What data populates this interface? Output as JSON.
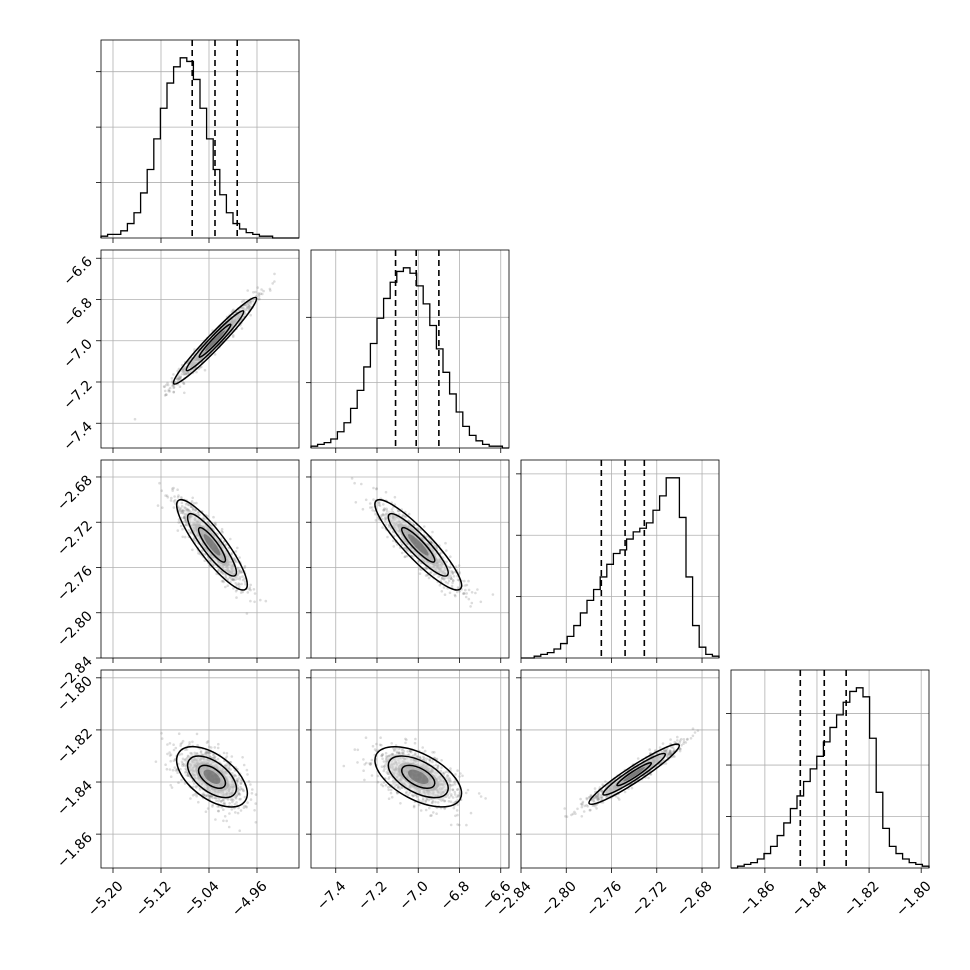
{
  "chart_data": {
    "type": "corner",
    "grid": true,
    "parameters": [
      {
        "range": [
          -5.22,
          -4.89
        ],
        "ticks": [
          -5.2,
          -5.12,
          -5.04,
          -4.96
        ],
        "tick_labels": [
          "−5.20",
          "−5.12",
          "−5.04",
          "−4.96"
        ],
        "quantiles": [
          -5.068,
          -5.03,
          -4.993
        ],
        "hist_ticks": [
          0.28,
          0.56,
          0.84
        ]
      },
      {
        "range": [
          -7.52,
          -6.56
        ],
        "ticks": [
          -7.4,
          -7.2,
          -7.0,
          -6.8,
          -6.6
        ],
        "tick_labels": [
          "−7.4",
          "−7.2",
          "−7.0",
          "−6.8",
          "−6.6"
        ],
        "quantiles": [
          -7.11,
          -7.01,
          -6.9
        ],
        "hist_ticks": [
          0.33,
          0.66
        ]
      },
      {
        "range": [
          -2.84,
          -2.665
        ],
        "ticks": [
          -2.84,
          -2.8,
          -2.76,
          -2.72,
          -2.68
        ],
        "tick_labels": [
          "−2.84",
          "−2.80",
          "−2.76",
          "−2.72",
          "−2.68"
        ],
        "quantiles": [
          -2.769,
          -2.748,
          -2.731
        ],
        "hist_ticks": [
          0.31,
          0.62,
          0.93
        ]
      },
      {
        "range": [
          -1.873,
          -1.797
        ],
        "ticks": [
          -1.86,
          -1.84,
          -1.82,
          -1.8
        ],
        "tick_labels": [
          "−1.86",
          "−1.84",
          "−1.82",
          "−1.80"
        ],
        "quantiles": [
          -1.8464,
          -1.8372,
          -1.8288
        ],
        "hist_ticks": [
          0.26,
          0.52,
          0.78
        ]
      }
    ],
    "histograms": [
      {
        "bins": 30,
        "counts": [
          0.01,
          0.02,
          0.02,
          0.04,
          0.08,
          0.14,
          0.25,
          0.38,
          0.55,
          0.72,
          0.86,
          0.95,
          1.0,
          0.98,
          0.88,
          0.72,
          0.55,
          0.38,
          0.24,
          0.14,
          0.08,
          0.05,
          0.03,
          0.02,
          0.01,
          0.01,
          0,
          0,
          0,
          0
        ]
      },
      {
        "bins": 30,
        "counts": [
          0.01,
          0.02,
          0.03,
          0.05,
          0.09,
          0.14,
          0.22,
          0.32,
          0.45,
          0.58,
          0.72,
          0.83,
          0.92,
          0.98,
          1.0,
          0.97,
          0.9,
          0.8,
          0.68,
          0.55,
          0.42,
          0.3,
          0.2,
          0.12,
          0.07,
          0.04,
          0.02,
          0.01,
          0.01,
          0
        ]
      },
      {
        "bins": 30,
        "counts": [
          0,
          0,
          0.01,
          0.02,
          0.03,
          0.05,
          0.08,
          0.12,
          0.18,
          0.25,
          0.32,
          0.38,
          0.45,
          0.52,
          0.58,
          0.6,
          0.66,
          0.7,
          0.72,
          0.75,
          0.82,
          0.9,
          1.0,
          1.0,
          0.78,
          0.45,
          0.18,
          0.06,
          0.02,
          0.01
        ]
      },
      {
        "bins": 30,
        "counts": [
          0,
          0.01,
          0.02,
          0.03,
          0.05,
          0.08,
          0.12,
          0.18,
          0.25,
          0.33,
          0.4,
          0.48,
          0.55,
          0.62,
          0.7,
          0.78,
          0.85,
          0.92,
          0.98,
          1.0,
          0.95,
          0.72,
          0.42,
          0.22,
          0.12,
          0.08,
          0.05,
          0.03,
          0.02,
          0.01
        ]
      }
    ],
    "pairs": [
      {
        "x": 0,
        "y": 1,
        "mean": [
          -5.03,
          -7.0
        ],
        "sd": [
          0.033,
          0.1
        ],
        "rho": 0.97
      },
      {
        "x": 0,
        "y": 2,
        "mean": [
          -5.035,
          -2.74
        ],
        "sd": [
          0.028,
          0.019
        ],
        "rho": -0.88
      },
      {
        "x": 1,
        "y": 2,
        "mean": [
          -7.0,
          -2.74
        ],
        "sd": [
          0.1,
          0.019
        ],
        "rho": -0.9
      },
      {
        "x": 0,
        "y": 3,
        "mean": [
          -5.035,
          -1.838
        ],
        "sd": [
          0.028,
          0.0055
        ],
        "rho": -0.55
      },
      {
        "x": 1,
        "y": 3,
        "mean": [
          -7.0,
          -1.838
        ],
        "sd": [
          0.1,
          0.0055
        ],
        "rho": -0.55
      },
      {
        "x": 2,
        "y": 3,
        "mean": [
          -2.74,
          -1.837
        ],
        "sd": [
          0.019,
          0.0055
        ],
        "rho": 0.95
      }
    ]
  }
}
